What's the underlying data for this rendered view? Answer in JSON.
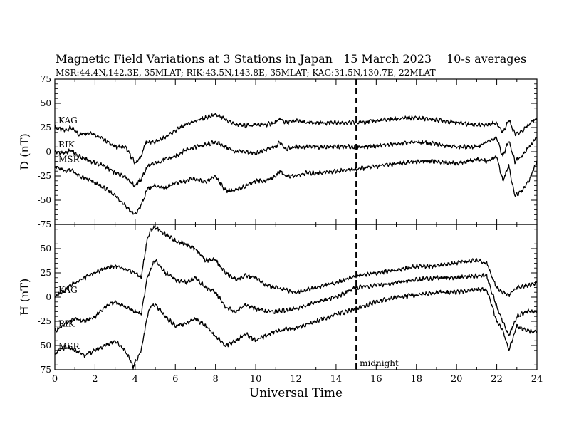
{
  "header": {
    "title": "Magnetic Field Variations at 3 Stations in Japan",
    "date": "15 March   2023",
    "averaging": "10-s averages",
    "stations_line": "MSR:44.4N,142.3E, 35MLAT;  RIK:43.5N,143.8E, 35MLAT;  KAG:31.5N,130.7E, 22MLAT"
  },
  "chart_data": [
    {
      "type": "line",
      "panel": "D",
      "ylabel": "D (nT)",
      "xlim": [
        0,
        24
      ],
      "ylim": [
        -75,
        75
      ],
      "yticks": [
        -75,
        -50,
        -25,
        0,
        25,
        50,
        75
      ],
      "grid": false,
      "series": [
        {
          "name": "KAG",
          "x": [
            0,
            0.5,
            0.8,
            1.2,
            1.8,
            2.5,
            3.0,
            3.5,
            3.8,
            4.0,
            4.3,
            4.5,
            4.6,
            5.0,
            5.5,
            6.0,
            6.5,
            7.0,
            7.5,
            8.0,
            8.5,
            9.0,
            9.5,
            10.0,
            10.5,
            11.0,
            11.2,
            11.5,
            12.0,
            12.5,
            13.0,
            14.0,
            15.0,
            16.0,
            17.0,
            18.0,
            19.0,
            20.0,
            21.0,
            21.5,
            22.0,
            22.3,
            22.6,
            22.9,
            23.2,
            23.6,
            24.0
          ],
          "y": [
            25,
            22,
            25,
            18,
            20,
            12,
            5,
            5,
            -5,
            -12,
            -5,
            8,
            10,
            10,
            15,
            22,
            28,
            32,
            35,
            38,
            33,
            28,
            27,
            28,
            28,
            30,
            34,
            30,
            32,
            30,
            30,
            30,
            30,
            32,
            34,
            35,
            33,
            30,
            28,
            28,
            30,
            20,
            33,
            18,
            20,
            28,
            35
          ]
        },
        {
          "name": "RIK",
          "x": [
            0,
            0.5,
            0.8,
            1.2,
            1.8,
            2.5,
            3.0,
            3.5,
            3.8,
            4.0,
            4.3,
            4.5,
            4.6,
            5.0,
            5.5,
            6.0,
            6.5,
            7.0,
            7.5,
            8.0,
            8.5,
            9.0,
            9.5,
            10.0,
            10.5,
            11.0,
            11.2,
            11.5,
            12.0,
            12.5,
            13.0,
            14.0,
            15.0,
            16.0,
            17.0,
            18.0,
            19.0,
            20.0,
            21.0,
            21.5,
            22.0,
            22.3,
            22.6,
            22.9,
            23.2,
            23.6,
            24.0
          ],
          "y": [
            0,
            -2,
            2,
            -5,
            -10,
            -15,
            -22,
            -25,
            -32,
            -35,
            -28,
            -20,
            -15,
            -12,
            -8,
            -5,
            2,
            5,
            7,
            10,
            5,
            0,
            0,
            -2,
            2,
            5,
            10,
            3,
            5,
            5,
            5,
            5,
            5,
            6,
            8,
            10,
            8,
            5,
            5,
            10,
            14,
            -5,
            12,
            -10,
            -5,
            5,
            15
          ]
        },
        {
          "name": "MSR",
          "x": [
            0,
            0.5,
            0.8,
            1.2,
            1.8,
            2.5,
            3.0,
            3.5,
            3.8,
            4.0,
            4.3,
            4.5,
            4.6,
            5.0,
            5.5,
            6.0,
            6.5,
            7.0,
            7.5,
            8.0,
            8.5,
            9.0,
            9.5,
            10.0,
            10.5,
            11.0,
            11.2,
            11.5,
            12.0,
            12.5,
            13.0,
            14.0,
            15.0,
            16.0,
            17.0,
            18.0,
            19.0,
            20.0,
            21.0,
            21.5,
            22.0,
            22.3,
            22.6,
            22.9,
            23.2,
            23.6,
            24.0
          ],
          "y": [
            -15,
            -20,
            -18,
            -25,
            -30,
            -38,
            -45,
            -55,
            -62,
            -65,
            -55,
            -45,
            -38,
            -35,
            -38,
            -32,
            -30,
            -28,
            -32,
            -25,
            -40,
            -40,
            -35,
            -30,
            -30,
            -25,
            -20,
            -25,
            -25,
            -22,
            -22,
            -20,
            -18,
            -15,
            -12,
            -10,
            -10,
            -12,
            -8,
            -10,
            -5,
            -30,
            -15,
            -45,
            -42,
            -30,
            -10
          ]
        }
      ]
    },
    {
      "type": "line",
      "panel": "H",
      "ylabel": "H (nT)",
      "xlabel": "Universal Time",
      "xlim": [
        0,
        24
      ],
      "ylim": [
        -75,
        75
      ],
      "xticks": [
        0,
        2,
        4,
        6,
        8,
        10,
        12,
        14,
        16,
        18,
        20,
        22,
        24
      ],
      "yticks": [
        -75,
        -50,
        -25,
        0,
        25,
        50
      ],
      "grid": false,
      "annotation": {
        "x": 15,
        "text": "midnight"
      },
      "series": [
        {
          "name": "KAG",
          "x": [
            0,
            0.5,
            1.0,
            1.5,
            2.0,
            2.5,
            3.0,
            3.5,
            4.0,
            4.3,
            4.6,
            4.8,
            5.0,
            5.5,
            6.0,
            6.5,
            7.0,
            7.5,
            8.0,
            8.5,
            9.0,
            9.5,
            10.0,
            10.5,
            11.0,
            12.0,
            13.0,
            14.0,
            15.0,
            16.0,
            17.0,
            18.0,
            19.0,
            20.0,
            21.0,
            21.5,
            22.0,
            22.3,
            22.6,
            23.0,
            23.5,
            24.0
          ],
          "y": [
            0,
            8,
            15,
            20,
            25,
            30,
            32,
            28,
            25,
            20,
            60,
            70,
            72,
            65,
            58,
            55,
            50,
            38,
            38,
            25,
            18,
            22,
            20,
            12,
            10,
            5,
            10,
            15,
            22,
            25,
            28,
            32,
            32,
            35,
            38,
            35,
            10,
            5,
            2,
            10,
            12,
            15
          ]
        },
        {
          "name": "RIK",
          "x": [
            0,
            0.5,
            1.0,
            1.5,
            2.0,
            2.5,
            3.0,
            3.5,
            4.0,
            4.3,
            4.6,
            4.8,
            5.0,
            5.5,
            6.0,
            6.5,
            7.0,
            7.5,
            8.0,
            8.5,
            9.0,
            9.5,
            10.0,
            10.5,
            11.0,
            12.0,
            13.0,
            14.0,
            15.0,
            16.0,
            17.0,
            18.0,
            19.0,
            20.0,
            21.0,
            21.5,
            22.0,
            22.3,
            22.6,
            23.0,
            23.5,
            24.0
          ],
          "y": [
            -35,
            -28,
            -22,
            -25,
            -20,
            -10,
            -5,
            -10,
            -15,
            -18,
            20,
            30,
            38,
            25,
            18,
            15,
            20,
            10,
            5,
            -10,
            -15,
            -8,
            -12,
            -15,
            -15,
            -12,
            -5,
            0,
            10,
            12,
            15,
            18,
            20,
            20,
            22,
            22,
            -10,
            -25,
            -40,
            -20,
            -15,
            -15
          ]
        },
        {
          "name": "MSR",
          "x": [
            0,
            0.5,
            1.0,
            1.5,
            2.0,
            2.5,
            3.0,
            3.5,
            3.9,
            4.3,
            4.6,
            4.8,
            5.0,
            5.5,
            6.0,
            6.5,
            7.0,
            7.5,
            8.0,
            8.5,
            9.0,
            9.5,
            10.0,
            10.5,
            11.0,
            12.0,
            13.0,
            14.0,
            15.0,
            16.0,
            17.0,
            18.0,
            19.0,
            20.0,
            21.0,
            21.5,
            22.0,
            22.3,
            22.6,
            23.0,
            23.5,
            24.0
          ],
          "y": [
            -58,
            -52,
            -55,
            -60,
            -55,
            -50,
            -45,
            -55,
            -72,
            -55,
            -20,
            -8,
            -8,
            -20,
            -30,
            -28,
            -22,
            -30,
            -40,
            -50,
            -45,
            -38,
            -45,
            -40,
            -35,
            -32,
            -25,
            -18,
            -12,
            -5,
            0,
            2,
            5,
            5,
            8,
            8,
            -25,
            -35,
            -55,
            -30,
            -35,
            -35
          ]
        }
      ]
    }
  ]
}
